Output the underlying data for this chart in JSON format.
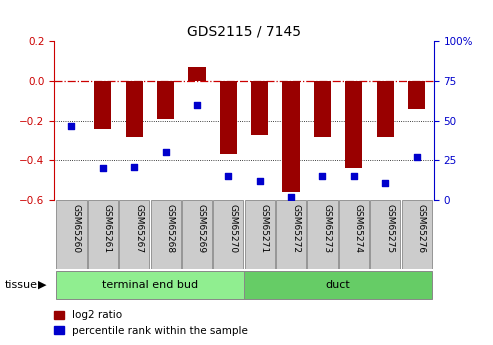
{
  "title": "GDS2115 / 7145",
  "samples": [
    "GSM65260",
    "GSM65261",
    "GSM65267",
    "GSM65268",
    "GSM65269",
    "GSM65270",
    "GSM65271",
    "GSM65272",
    "GSM65273",
    "GSM65274",
    "GSM65275",
    "GSM65276"
  ],
  "log2_ratio": [
    0.0,
    -0.24,
    -0.28,
    -0.19,
    0.07,
    -0.37,
    -0.27,
    -0.56,
    -0.28,
    -0.44,
    -0.28,
    -0.14
  ],
  "percentile": [
    47,
    20,
    21,
    30,
    60,
    15,
    12,
    2,
    15,
    15,
    11,
    27
  ],
  "group1_label": "terminal end bud",
  "group2_label": "duct",
  "group1_count": 6,
  "group2_count": 6,
  "tissue_label": "tissue",
  "legend_red": "log2 ratio",
  "legend_blue": "percentile rank within the sample",
  "ylim_left": [
    -0.6,
    0.2
  ],
  "ylim_right": [
    0,
    100
  ],
  "yticks_left": [
    -0.6,
    -0.4,
    -0.2,
    0.0,
    0.2
  ],
  "yticks_right": [
    0,
    25,
    50,
    75,
    100
  ],
  "ytick_labels_right": [
    "0",
    "25",
    "50",
    "75",
    "100%"
  ],
  "bar_color": "#990000",
  "dot_color": "#0000CC",
  "hline_color": "#CC0000",
  "gridline_color": "#000000",
  "group1_color": "#90EE90",
  "group2_color": "#66CC66",
  "title_color": "#000000",
  "label_bg_color": "#CCCCCC"
}
